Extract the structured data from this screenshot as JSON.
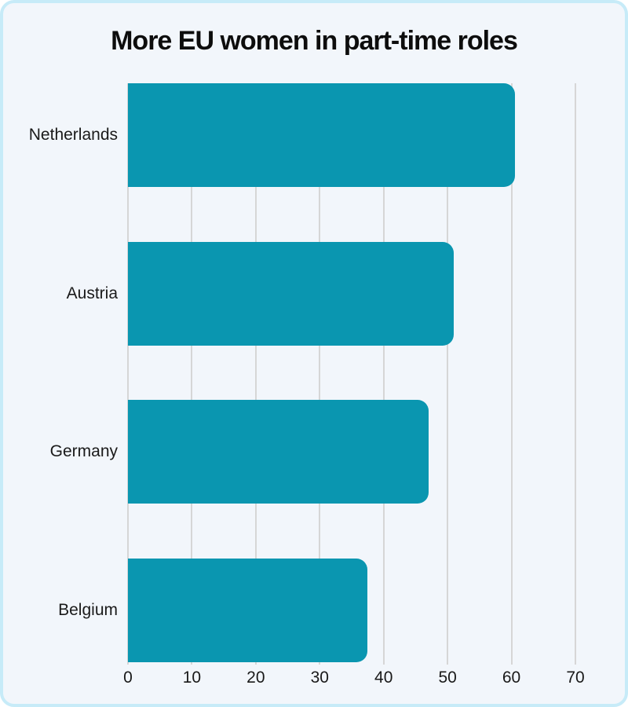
{
  "chart_data": {
    "type": "bar",
    "orientation": "horizontal",
    "title": "More EU women in part-time roles",
    "categories": [
      "Netherlands",
      "Austria",
      "Germany",
      "Belgium"
    ],
    "values": [
      60.5,
      51,
      47,
      37.5
    ],
    "xlabel": "",
    "ylabel": "",
    "xlim": [
      0,
      70
    ],
    "x_ticks": [
      0,
      10,
      20,
      30,
      40,
      50,
      60,
      70
    ],
    "grid": "vertical-gridlines-on",
    "legend": "none",
    "colors": {
      "bar": "#0A96B0",
      "gridline": "#d6d6d6",
      "card_background": "#f2f6fb",
      "card_border": "#c7ebf8",
      "page_background": "#ffffff",
      "title_text": "#0d0d0d",
      "label_text": "#1a1a1a"
    }
  }
}
